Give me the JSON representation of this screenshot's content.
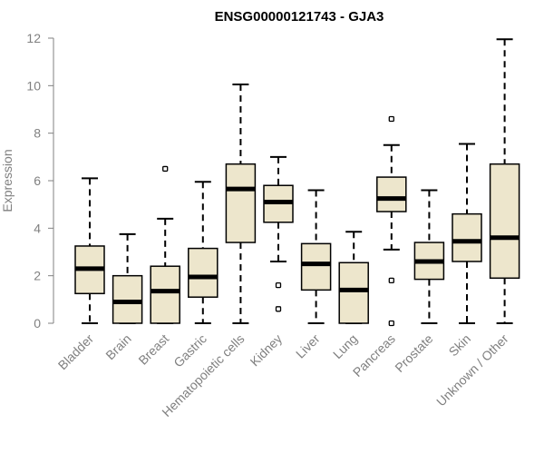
{
  "chart_data": {
    "type": "boxplot",
    "title": "ENSG00000121743 - GJA3",
    "xlabel": "",
    "ylabel": "Expression",
    "ylim": [
      0,
      12
    ],
    "yticks": [
      0,
      2,
      4,
      6,
      8,
      10,
      12
    ],
    "box_fill": "#ede6cc",
    "line_color": "#000000",
    "text_color": "#808080",
    "categories": [
      "Bladder",
      "Brain",
      "Breast",
      "Gastric",
      "Hematopoietic cells",
      "Kidney",
      "Liver",
      "Lung",
      "Pancreas",
      "Prostate",
      "Skin",
      "Unknown / Other"
    ],
    "boxes": [
      {
        "category": "Bladder",
        "whisker_low": 0.0,
        "q1": 1.25,
        "median": 2.3,
        "q3": 3.25,
        "whisker_high": 6.1,
        "outliers": []
      },
      {
        "category": "Brain",
        "whisker_low": 0.0,
        "q1": 0.0,
        "median": 0.9,
        "q3": 2.0,
        "whisker_high": 3.75,
        "outliers": []
      },
      {
        "category": "Breast",
        "whisker_low": 0.0,
        "q1": 0.0,
        "median": 1.35,
        "q3": 2.4,
        "whisker_high": 4.4,
        "outliers": [
          6.5
        ]
      },
      {
        "category": "Gastric",
        "whisker_low": 0.0,
        "q1": 1.1,
        "median": 1.95,
        "q3": 3.15,
        "whisker_high": 5.95,
        "outliers": []
      },
      {
        "category": "Hematopoietic cells",
        "whisker_low": 0.0,
        "q1": 3.4,
        "median": 5.65,
        "q3": 6.7,
        "whisker_high": 10.05,
        "outliers": []
      },
      {
        "category": "Kidney",
        "whisker_low": 2.6,
        "q1": 4.25,
        "median": 5.1,
        "q3": 5.8,
        "whisker_high": 7.0,
        "outliers": [
          1.6,
          0.6
        ]
      },
      {
        "category": "Liver",
        "whisker_low": 0.0,
        "q1": 1.4,
        "median": 2.5,
        "q3": 3.35,
        "whisker_high": 5.6,
        "outliers": []
      },
      {
        "category": "Lung",
        "whisker_low": 0.0,
        "q1": 0.0,
        "median": 1.4,
        "q3": 2.55,
        "whisker_high": 3.85,
        "outliers": []
      },
      {
        "category": "Pancreas",
        "whisker_low": 3.1,
        "q1": 4.7,
        "median": 5.25,
        "q3": 6.15,
        "whisker_high": 7.5,
        "outliers": [
          8.6,
          1.8,
          0.0
        ]
      },
      {
        "category": "Prostate",
        "whisker_low": 0.0,
        "q1": 1.85,
        "median": 2.6,
        "q3": 3.4,
        "whisker_high": 5.6,
        "outliers": []
      },
      {
        "category": "Skin",
        "whisker_low": 0.0,
        "q1": 2.6,
        "median": 3.45,
        "q3": 4.6,
        "whisker_high": 7.55,
        "outliers": []
      },
      {
        "category": "Unknown / Other",
        "whisker_low": 0.0,
        "q1": 1.9,
        "median": 3.6,
        "q3": 6.7,
        "whisker_high": 11.95,
        "outliers": []
      }
    ]
  }
}
